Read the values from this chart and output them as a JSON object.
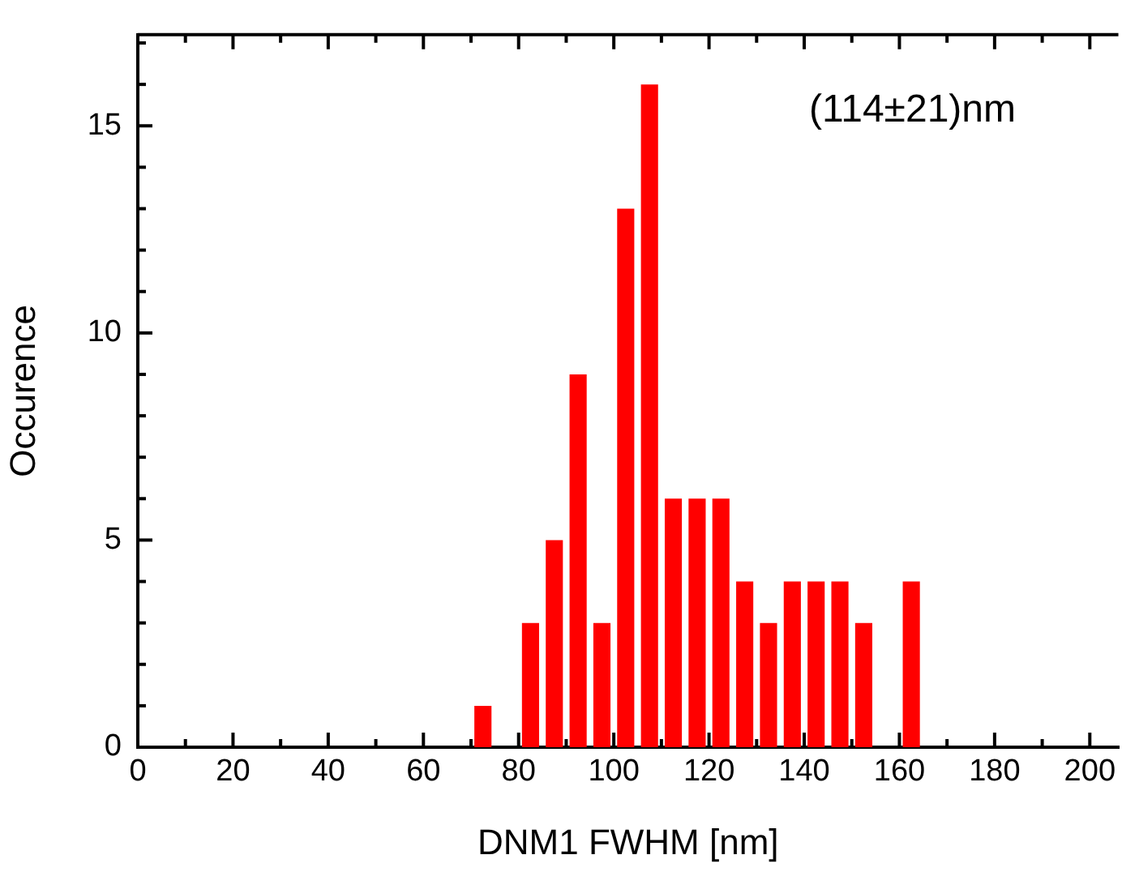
{
  "chart_data": {
    "type": "histogram",
    "xlabel": "DNM1 FWHM [nm]",
    "ylabel": "Occurence",
    "bins": [
      70,
      75,
      80,
      85,
      90,
      95,
      100,
      105,
      110,
      115,
      120,
      125,
      130,
      135,
      140,
      145,
      150,
      155,
      160,
      165
    ],
    "values": [
      1,
      0,
      3,
      5,
      9,
      3,
      13,
      16,
      6,
      6,
      6,
      4,
      3,
      4,
      4,
      4,
      3,
      0,
      4
    ],
    "color": "#ff0000",
    "xlim": [
      0,
      206
    ],
    "xticks": [
      0,
      {
        "value": 10,
        "label": null
      },
      20,
      {
        "value": 30,
        "label": null
      },
      40,
      {
        "value": 50,
        "label": null
      },
      60,
      {
        "value": 70,
        "label": null
      },
      80,
      {
        "value": 90,
        "label": null
      },
      100,
      {
        "value": 110,
        "label": null
      },
      120,
      {
        "value": 130,
        "label": null
      },
      140,
      {
        "value": 150,
        "label": null
      },
      160,
      {
        "value": 170,
        "label": null
      },
      180,
      {
        "value": 190,
        "label": null
      },
      200
    ],
    "ylim": [
      0,
      17.2
    ],
    "yticks": [
      0,
      {
        "value": 1,
        "label": null
      },
      {
        "value": 2,
        "label": null
      },
      {
        "value": 3,
        "label": null
      },
      {
        "value": 4,
        "label": null
      },
      5,
      {
        "value": 6,
        "label": null
      },
      {
        "value": 7,
        "label": null
      },
      {
        "value": 8,
        "label": null
      },
      {
        "value": 9,
        "label": null
      },
      10,
      {
        "value": 11,
        "label": null
      },
      {
        "value": 12,
        "label": null
      },
      {
        "value": 13,
        "label": null
      },
      {
        "value": 14,
        "label": null
      },
      15,
      {
        "value": 16,
        "label": null
      },
      {
        "value": 17,
        "label": null
      }
    ],
    "grid": false,
    "annotations": [
      "(114±21)nm"
    ]
  }
}
